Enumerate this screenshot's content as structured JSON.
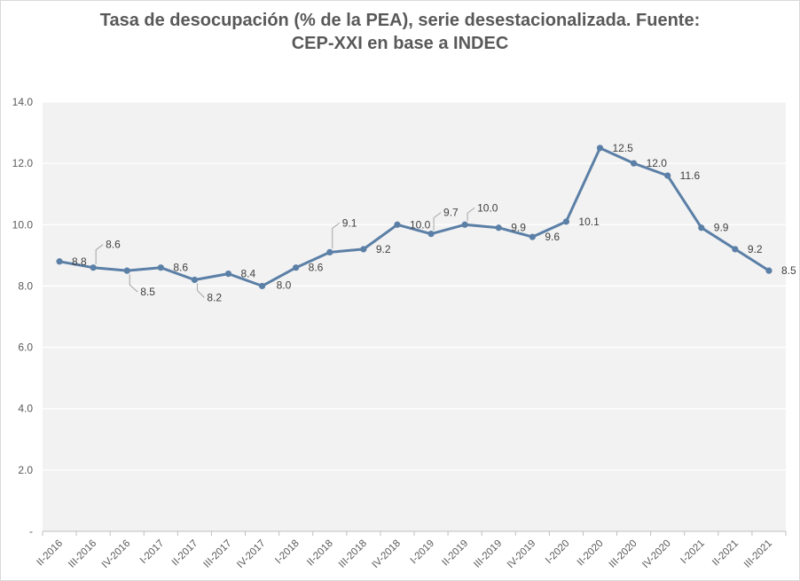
{
  "chart_data": {
    "type": "line",
    "title_line1": "Tasa de desocupación (% de la PEA), serie desestacionalizada. Fuente:",
    "title_line2": "CEP-XXI en base a INDEC",
    "xlabel": "",
    "ylabel": "",
    "ylim": [
      0,
      14
    ],
    "yticks": [
      "-",
      "2.0",
      "4.0",
      "6.0",
      "8.0",
      "10.0",
      "12.0",
      "14.0"
    ],
    "grid": true,
    "legend": "none",
    "categories": [
      "II-2016",
      "III-2016",
      "IV-2016",
      "I-2017",
      "II-2017",
      "III-2017",
      "IV-2017",
      "I-2018",
      "II-2018",
      "III-2018",
      "IV-2018",
      "I-2019",
      "II-2019",
      "III-2019",
      "IV-2019",
      "I-2020",
      "II-2020",
      "III-2020",
      "IV-2020",
      "I-2021",
      "II-2021",
      "III-2021"
    ],
    "series": [
      {
        "values": [
          8.8,
          8.6,
          8.5,
          8.6,
          8.2,
          8.4,
          8.0,
          8.6,
          9.1,
          9.2,
          10.0,
          9.7,
          10.0,
          9.9,
          9.6,
          10.1,
          12.5,
          12.0,
          11.6,
          9.9,
          9.2,
          8.5
        ],
        "labels": [
          "8.8",
          "8.6",
          "8.5",
          "8.6",
          "8.2",
          "8.4",
          "8.0",
          "8.6",
          "9.1",
          "9.2",
          "10.0",
          "9.7",
          "10.0",
          "9.9",
          "9.6",
          "10.1",
          "12.5",
          "12.0",
          "11.6",
          "9.9",
          "9.2",
          "8.5"
        ]
      }
    ],
    "colors": {
      "line": "#5b7fa6",
      "plot_bg": "#f2f2f2",
      "grid": "#ffffff",
      "text": "#595959"
    }
  }
}
